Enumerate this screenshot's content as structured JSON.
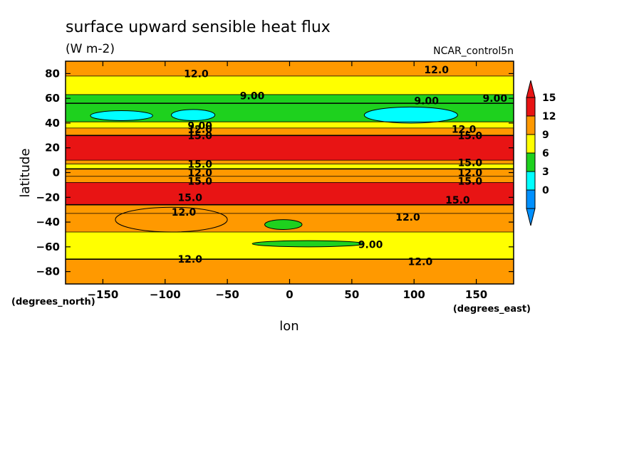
{
  "chart_data": {
    "type": "contour",
    "title": "surface upward sensible heat flux",
    "subtitle": "(W m-2)",
    "dataset": "NCAR_control5n",
    "xlabel": "lon",
    "ylabel": "latitude",
    "x_units": "(degrees_east)",
    "y_units": "(degrees_north)",
    "xlim": [
      -180,
      180
    ],
    "ylim": [
      -90,
      90
    ],
    "x_ticks": [
      -150,
      -100,
      -50,
      0,
      50,
      100,
      150
    ],
    "x_tick_labels": [
      "−150",
      "−100",
      "−50",
      "0",
      "50",
      "100",
      "150"
    ],
    "y_ticks": [
      80,
      60,
      40,
      20,
      0,
      -20,
      -40,
      -60,
      -80
    ],
    "y_tick_labels": [
      "80",
      "60",
      "40",
      "20",
      "0",
      "−20",
      "−40",
      "−60",
      "−80"
    ],
    "colorbar": {
      "levels": [
        0,
        3,
        6,
        9,
        12,
        15
      ],
      "labels": [
        "15",
        "12",
        "9",
        "6",
        "3",
        "0"
      ],
      "colors": [
        "#e81414",
        "#ff9900",
        "#ffff00",
        "#1ed11e",
        "#00ffff",
        "#0090ff"
      ],
      "extend": "both"
    },
    "zonal_bands": [
      {
        "lat_top": 90,
        "lat_bottom": 78,
        "value": 12.5
      },
      {
        "lat_top": 78,
        "lat_bottom": 63,
        "value": 10.5
      },
      {
        "lat_top": 63,
        "lat_bottom": 56,
        "value": 8
      },
      {
        "lat_top": 56,
        "lat_bottom": 41,
        "value": 7
      },
      {
        "lat_top": 41,
        "lat_bottom": 36,
        "value": 10.5
      },
      {
        "lat_top": 36,
        "lat_bottom": 30,
        "value": 13
      },
      {
        "lat_top": 30,
        "lat_bottom": 10,
        "value": 16
      },
      {
        "lat_top": 10,
        "lat_bottom": 7,
        "value": 13.5
      },
      {
        "lat_top": 7,
        "lat_bottom": 3,
        "value": 11
      },
      {
        "lat_top": 3,
        "lat_bottom": -3,
        "value": 13.5
      },
      {
        "lat_top": -3,
        "lat_bottom": -8,
        "value": 12.5
      },
      {
        "lat_top": -8,
        "lat_bottom": -26,
        "value": 16
      },
      {
        "lat_top": -26,
        "lat_bottom": -33,
        "value": 13
      },
      {
        "lat_top": -33,
        "lat_bottom": -48,
        "value": 12.5
      },
      {
        "lat_top": -48,
        "lat_bottom": -70,
        "value": 10.5
      },
      {
        "lat_top": -70,
        "lat_bottom": -90,
        "value": 12.5
      }
    ],
    "features": [
      {
        "lon_min": -160,
        "lon_max": -110,
        "lat_min": 42,
        "lat_max": 50,
        "value": 4
      },
      {
        "lon_min": -95,
        "lon_max": -60,
        "lat_min": 42,
        "lat_max": 51,
        "value": 4
      },
      {
        "lon_min": 60,
        "lon_max": 135,
        "lat_min": 40,
        "lat_max": 53,
        "value": 4
      },
      {
        "lon_min": -20,
        "lon_max": 10,
        "lat_min": -46,
        "lat_max": -38,
        "value": 7
      },
      {
        "lon_min": -30,
        "lon_max": 60,
        "lat_min": -60,
        "lat_max": -55,
        "value": 7
      },
      {
        "lon_min": -140,
        "lon_max": -50,
        "lat_min": -48,
        "lat_max": -28,
        "value": 13
      }
    ],
    "contour_labels": [
      {
        "text": "12.0",
        "lon": -75,
        "lat": 80
      },
      {
        "text": "12.0",
        "lon": 118,
        "lat": 83
      },
      {
        "text": "9.00",
        "lon": -30,
        "lat": 62
      },
      {
        "text": "9.00",
        "lon": 110,
        "lat": 58
      },
      {
        "text": "9.00",
        "lon": 165,
        "lat": 60
      },
      {
        "text": "9.00",
        "lon": -72,
        "lat": 38
      },
      {
        "text": "12.0",
        "lon": -72,
        "lat": 35
      },
      {
        "text": "15.0",
        "lon": -72,
        "lat": 30
      },
      {
        "text": "12.0",
        "lon": 140,
        "lat": 35
      },
      {
        "text": "15.0",
        "lon": 145,
        "lat": 30
      },
      {
        "text": "15.0",
        "lon": -72,
        "lat": 7
      },
      {
        "text": "15.0",
        "lon": 145,
        "lat": 8
      },
      {
        "text": "12.0",
        "lon": -72,
        "lat": 0
      },
      {
        "text": "12.0",
        "lon": 145,
        "lat": 0
      },
      {
        "text": "15.0",
        "lon": -72,
        "lat": -7
      },
      {
        "text": "15.0",
        "lon": 145,
        "lat": -7
      },
      {
        "text": "15.0",
        "lon": -80,
        "lat": -20
      },
      {
        "text": "15.0",
        "lon": 135,
        "lat": -22
      },
      {
        "text": "12.0",
        "lon": -85,
        "lat": -32
      },
      {
        "text": "12.0",
        "lon": 95,
        "lat": -36
      },
      {
        "text": "9.00",
        "lon": 65,
        "lat": -58
      },
      {
        "text": "12.0",
        "lon": -80,
        "lat": -70
      },
      {
        "text": "12.0",
        "lon": 105,
        "lat": -72
      }
    ]
  }
}
